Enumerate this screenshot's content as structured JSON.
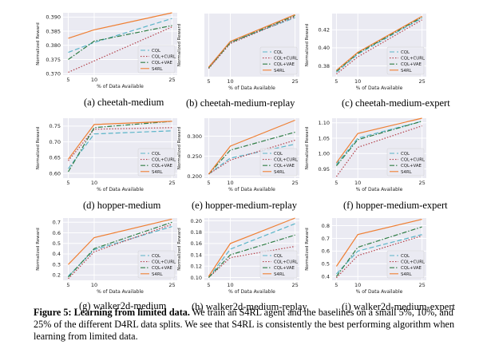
{
  "caption": {
    "label": "Figure 5:",
    "bold": "Learning from limited data.",
    "text": "We train an S4RL agent and the baselines on a small 5%, 10%, and 25% of the different D4RL data splits. We see that S4RL is consistently the best performing algorithm when learning from limited data."
  },
  "legend": [
    "CQL",
    "CQL+CURL",
    "CQL+VAE",
    "S4RL"
  ],
  "series_colors": {
    "CQL": "#5ab4c8",
    "CQL+CURL": "#b3404a",
    "CQL+VAE": "#2f7d45",
    "S4RL": "#ef7f33"
  },
  "chart_data": [
    {
      "type": "line",
      "title": "(a) cheetah-medium",
      "xlabel": "% of Data Available",
      "ylabel": "Normalized Reward",
      "x": [
        5,
        10,
        25
      ],
      "ylim": [
        0.3695,
        0.3915
      ],
      "yticks": [
        0.37,
        0.375,
        0.38,
        0.385,
        0.39
      ],
      "ytick_labels": [
        "0.370",
        "0.375",
        "0.380",
        "0.385",
        "0.390"
      ],
      "series": [
        {
          "name": "CQL",
          "values": [
            0.3775,
            0.381,
            0.3895
          ]
        },
        {
          "name": "CQL+CURL",
          "values": [
            0.3705,
            0.3745,
            0.3865
          ]
        },
        {
          "name": "CQL+VAE",
          "values": [
            0.375,
            0.3815,
            0.387
          ]
        },
        {
          "name": "S4RL",
          "values": [
            0.3825,
            0.3855,
            0.3915
          ]
        }
      ]
    },
    {
      "type": "line",
      "title": "(b) cheetah-medium-replay",
      "xlabel": "% of Data Available",
      "ylabel": "Normalized Reward",
      "x": [
        5,
        10,
        25
      ],
      "ylim": [
        0.075,
        0.385
      ],
      "yticks": [],
      "ytick_labels": [],
      "series": [
        {
          "name": "CQL",
          "values": [
            0.12,
            0.245,
            0.365
          ]
        },
        {
          "name": "CQL+CURL",
          "values": [
            0.115,
            0.238,
            0.37
          ]
        },
        {
          "name": "CQL+VAE",
          "values": [
            0.118,
            0.242,
            0.375
          ]
        },
        {
          "name": "S4RL",
          "values": [
            0.122,
            0.248,
            0.38
          ]
        }
      ]
    },
    {
      "type": "line",
      "title": "(c) cheetah-medium-expert",
      "xlabel": "% of Data Available",
      "ylabel": "Normalized Reward",
      "x": [
        5,
        10,
        25
      ],
      "ylim": [
        0.368,
        0.438
      ],
      "yticks": [
        0.38,
        0.4,
        0.42
      ],
      "ytick_labels": [
        "0.38",
        "0.40",
        "0.42"
      ],
      "series": [
        {
          "name": "CQL",
          "values": [
            0.373,
            0.393,
            0.433
          ]
        },
        {
          "name": "CQL+CURL",
          "values": [
            0.371,
            0.39,
            0.431
          ]
        },
        {
          "name": "CQL+VAE",
          "values": [
            0.374,
            0.394,
            0.434
          ]
        },
        {
          "name": "S4RL",
          "values": [
            0.375,
            0.395,
            0.435
          ]
        }
      ]
    },
    {
      "type": "line",
      "title": "(d) hopper-medium",
      "xlabel": "% of Data Available",
      "ylabel": "Normalized Reward",
      "x": [
        5,
        10,
        25
      ],
      "ylim": [
        0.585,
        0.775
      ],
      "yticks": [
        0.6,
        0.65,
        0.7,
        0.75
      ],
      "ytick_labels": [
        "0.60",
        "0.65",
        "0.70",
        "0.75"
      ],
      "series": [
        {
          "name": "CQL",
          "values": [
            0.615,
            0.725,
            0.735
          ]
        },
        {
          "name": "CQL+CURL",
          "values": [
            0.64,
            0.74,
            0.745
          ]
        },
        {
          "name": "CQL+VAE",
          "values": [
            0.605,
            0.745,
            0.765
          ]
        },
        {
          "name": "S4RL",
          "values": [
            0.645,
            0.755,
            0.765
          ]
        }
      ]
    },
    {
      "type": "line",
      "title": "(e) hopper-medium-replay",
      "xlabel": "% of Data Available",
      "ylabel": "Normalized Reward",
      "x": [
        5,
        10,
        25
      ],
      "ylim": [
        0.195,
        0.345
      ],
      "yticks": [
        0.2,
        0.25,
        0.3
      ],
      "ytick_labels": [
        "0.200",
        "0.250",
        "0.300"
      ],
      "series": [
        {
          "name": "CQL",
          "values": [
            0.205,
            0.245,
            0.28
          ]
        },
        {
          "name": "CQL+CURL",
          "values": [
            0.205,
            0.24,
            0.29
          ]
        },
        {
          "name": "CQL+VAE",
          "values": [
            0.205,
            0.265,
            0.31
          ]
        },
        {
          "name": "S4RL",
          "values": [
            0.205,
            0.275,
            0.34
          ]
        }
      ]
    },
    {
      "type": "line",
      "title": "(f) hopper-medium-expert",
      "xlabel": "% of Data Available",
      "ylabel": "Normalized Reward",
      "x": [
        5,
        10,
        25
      ],
      "ylim": [
        0.92,
        1.115
      ],
      "yticks": [
        0.95,
        1.0,
        1.05,
        1.1
      ],
      "ytick_labels": [
        "0.95",
        "1.00",
        "1.05",
        "1.10"
      ],
      "series": [
        {
          "name": "CQL",
          "values": [
            0.965,
            1.05,
            1.105
          ]
        },
        {
          "name": "CQL+CURL",
          "values": [
            0.925,
            1.02,
            1.09
          ]
        },
        {
          "name": "CQL+VAE",
          "values": [
            0.96,
            1.045,
            1.105
          ]
        },
        {
          "name": "S4RL",
          "values": [
            0.97,
            1.065,
            1.115
          ]
        }
      ]
    },
    {
      "type": "line",
      "title": "(g) walker2d-medium",
      "xlabel": "% of Data Available",
      "ylabel": "Normalized Reward",
      "x": [
        5,
        10,
        25
      ],
      "ylim": [
        0.15,
        0.74
      ],
      "yticks": [
        0.2,
        0.3,
        0.4,
        0.5,
        0.6,
        0.7
      ],
      "ytick_labels": [
        "0.2",
        "0.3",
        "0.4",
        "0.5",
        "0.6",
        "0.7"
      ],
      "series": [
        {
          "name": "CQL",
          "values": [
            0.19,
            0.44,
            0.66
          ]
        },
        {
          "name": "CQL+CURL",
          "values": [
            0.165,
            0.42,
            0.68
          ]
        },
        {
          "name": "CQL+VAE",
          "values": [
            0.18,
            0.45,
            0.7
          ]
        },
        {
          "name": "S4RL",
          "values": [
            0.3,
            0.555,
            0.73
          ]
        }
      ]
    },
    {
      "type": "line",
      "title": "(h) walker2d-medium-replay",
      "xlabel": "% of Data Available",
      "ylabel": "Normalized Reward",
      "x": [
        5,
        10,
        25
      ],
      "ylim": [
        0.095,
        0.205
      ],
      "yticks": [
        0.1,
        0.12,
        0.14,
        0.16,
        0.18,
        0.2
      ],
      "ytick_labels": [
        "0.10",
        "0.12",
        "0.14",
        "0.16",
        "0.18",
        "0.20"
      ],
      "series": [
        {
          "name": "CQL",
          "values": [
            0.1,
            0.15,
            0.195
          ]
        },
        {
          "name": "CQL+CURL",
          "values": [
            0.1,
            0.135,
            0.155
          ]
        },
        {
          "name": "CQL+VAE",
          "values": [
            0.1,
            0.14,
            0.175
          ]
        },
        {
          "name": "S4RL",
          "values": [
            0.102,
            0.16,
            0.205
          ]
        }
      ]
    },
    {
      "type": "line",
      "title": "(i) walker2d-medium-expert",
      "xlabel": "% of Data Available",
      "ylabel": "Normalized Reward",
      "x": [
        5,
        10,
        25
      ],
      "ylim": [
        0.37,
        0.86
      ],
      "yticks": [
        0.4,
        0.5,
        0.6,
        0.7,
        0.8
      ],
      "ytick_labels": [
        "0.4",
        "0.5",
        "0.6",
        "0.7",
        "0.8"
      ],
      "series": [
        {
          "name": "CQL",
          "values": [
            0.42,
            0.6,
            0.73
          ]
        },
        {
          "name": "CQL+CURL",
          "values": [
            0.39,
            0.565,
            0.72
          ]
        },
        {
          "name": "CQL+VAE",
          "values": [
            0.4,
            0.63,
            0.79
          ]
        },
        {
          "name": "S4RL",
          "values": [
            0.48,
            0.73,
            0.85
          ]
        }
      ]
    }
  ]
}
